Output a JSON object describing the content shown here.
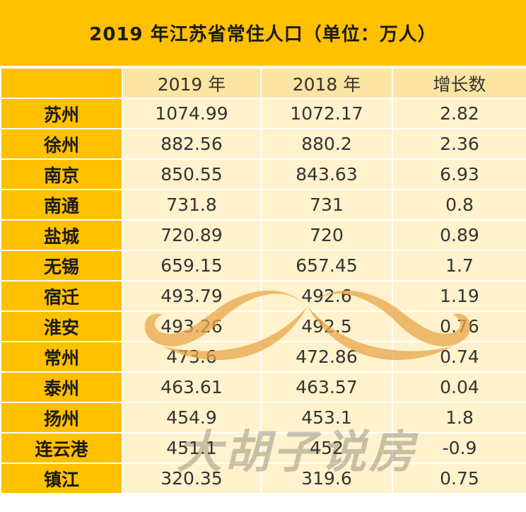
{
  "title": "2019 年江苏省常住人口（单位：万人）",
  "table": {
    "headers": [
      "",
      "2019 年",
      "2018 年",
      "增长数"
    ],
    "rows": [
      {
        "city": "苏州",
        "y2019": "1074.99",
        "y2018": "1072.17",
        "growth": "2.82"
      },
      {
        "city": "徐州",
        "y2019": "882.56",
        "y2018": "880.2",
        "growth": "2.36"
      },
      {
        "city": "南京",
        "y2019": "850.55",
        "y2018": "843.63",
        "growth": "6.93"
      },
      {
        "city": "南通",
        "y2019": "731.8",
        "y2018": "731",
        "growth": "0.8"
      },
      {
        "city": "盐城",
        "y2019": "720.89",
        "y2018": "720",
        "growth": "0.89"
      },
      {
        "city": "无锡",
        "y2019": "659.15",
        "y2018": "657.45",
        "growth": "1.7"
      },
      {
        "city": "宿迁",
        "y2019": "493.79",
        "y2018": "492.6",
        "growth": "1.19"
      },
      {
        "city": "淮安",
        "y2019": "493.26",
        "y2018": "492.5",
        "growth": "0.76"
      },
      {
        "city": "常州",
        "y2019": "473.6",
        "y2018": "472.86",
        "growth": "0.74"
      },
      {
        "city": "泰州",
        "y2019": "463.61",
        "y2018": "463.57",
        "growth": "0.04"
      },
      {
        "city": "扬州",
        "y2019": "454.9",
        "y2018": "453.1",
        "growth": "1.8"
      },
      {
        "city": "连云港",
        "y2019": "451.1",
        "y2018": "452",
        "growth": "-0.9"
      },
      {
        "city": "镇江",
        "y2019": "320.35",
        "y2018": "319.6",
        "growth": "0.75"
      }
    ]
  },
  "watermark": {
    "text": "大胡子说房",
    "icon": "mustache-icon"
  },
  "colors": {
    "title_bg": "#ffc000",
    "header_bg": "#fce4a3",
    "cell_bg": "#fff2cc",
    "city_bg": "#ffc000",
    "watermark": "#e8a64a"
  }
}
